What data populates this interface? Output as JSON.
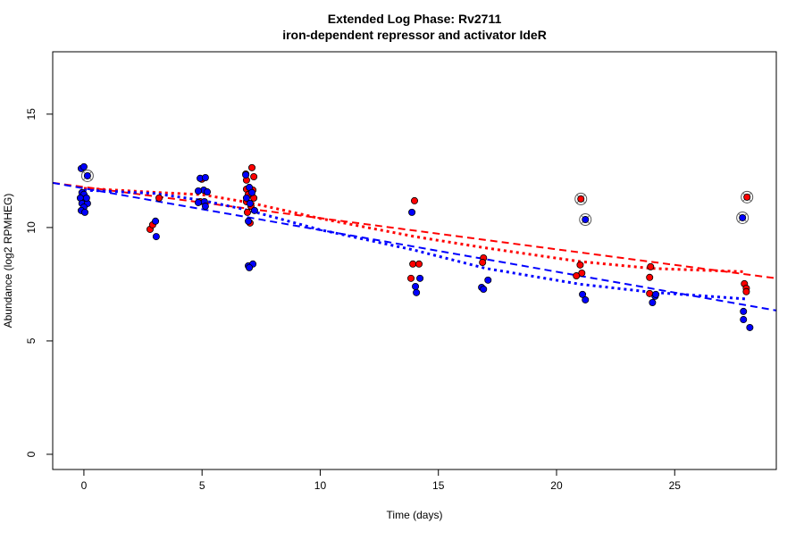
{
  "chart_data": {
    "type": "scatter",
    "title": "Extended Log Phase:      Rv2711",
    "subtitle": "iron-dependent repressor and activator IdeR",
    "xlabel": "Time  (days)",
    "ylabel": "Abundance  (log2 RPMHEG)",
    "xlim": [
      -1.32,
      29.3
    ],
    "ylim": [
      -0.67,
      17.75
    ],
    "xticks": [
      0,
      5,
      10,
      15,
      20,
      25
    ],
    "yticks": [
      0,
      5,
      10,
      15
    ],
    "grid": false,
    "colors": {
      "red": "#ff0000",
      "blue": "#0000ff"
    },
    "series": [
      {
        "color": "#ff0000",
        "points": [
          [
            2.8,
            9.92
          ],
          [
            2.91,
            10.12
          ],
          [
            3.18,
            11.3
          ],
          [
            4.99,
            12.13
          ],
          [
            4.92,
            11.14
          ],
          [
            6.85,
            12.36
          ],
          [
            7.11,
            12.64
          ],
          [
            6.88,
            12.09
          ],
          [
            7.19,
            12.24
          ],
          [
            6.88,
            11.69
          ],
          [
            7.15,
            11.65
          ],
          [
            6.96,
            11.46
          ],
          [
            7.19,
            11.3
          ],
          [
            6.88,
            11.14
          ],
          [
            7.07,
            10.94
          ],
          [
            6.92,
            10.67
          ],
          [
            7.03,
            10.2
          ],
          [
            13.99,
            11.18
          ],
          [
            13.92,
            8.39
          ],
          [
            14.18,
            8.39
          ],
          [
            13.84,
            7.76
          ],
          [
            16.91,
            8.66
          ],
          [
            16.87,
            8.46
          ],
          [
            21.0,
            8.35
          ],
          [
            21.07,
            7.99
          ],
          [
            20.84,
            7.87
          ],
          [
            23.98,
            8.27
          ],
          [
            23.94,
            7.8
          ],
          [
            23.94,
            7.09
          ],
          [
            27.95,
            7.52
          ],
          [
            28.03,
            7.32
          ],
          [
            28.03,
            7.17
          ]
        ],
        "outliers": [
          [
            21.03,
            11.26
          ],
          [
            28.06,
            11.34
          ]
        ]
      },
      {
        "color": "#0000ff",
        "points": [
          [
            -0.11,
            12.6
          ],
          [
            0,
            12.68
          ],
          [
            -0.08,
            11.54
          ],
          [
            0,
            11.46
          ],
          [
            -0.15,
            11.3
          ],
          [
            0.08,
            11.18
          ],
          [
            -0.08,
            11.06
          ],
          [
            0.15,
            11.06
          ],
          [
            0,
            10.9
          ],
          [
            -0.11,
            10.75
          ],
          [
            0.04,
            10.67
          ],
          [
            0.11,
            11.3
          ],
          [
            3.03,
            10.28
          ],
          [
            3.06,
            9.6
          ],
          [
            4.92,
            12.17
          ],
          [
            5.14,
            12.2
          ],
          [
            5.07,
            11.65
          ],
          [
            4.84,
            11.61
          ],
          [
            5.22,
            11.57
          ],
          [
            4.84,
            11.1
          ],
          [
            5.1,
            11.14
          ],
          [
            5.14,
            10.94
          ],
          [
            6.85,
            12.32
          ],
          [
            7.0,
            11.77
          ],
          [
            7.11,
            11.54
          ],
          [
            6.88,
            11.3
          ],
          [
            7.03,
            11.06
          ],
          [
            7.22,
            10.75
          ],
          [
            6.96,
            10.28
          ],
          [
            6.96,
            8.31
          ],
          [
            7.15,
            8.39
          ],
          [
            7.0,
            8.23
          ],
          [
            13.88,
            10.67
          ],
          [
            14.22,
            7.76
          ],
          [
            14.03,
            7.4
          ],
          [
            14.07,
            7.13
          ],
          [
            17.1,
            7.68
          ],
          [
            16.83,
            7.36
          ],
          [
            16.91,
            7.28
          ],
          [
            21.1,
            7.05
          ],
          [
            21.22,
            6.81
          ],
          [
            24.17,
            6.97
          ],
          [
            24.2,
            7.05
          ],
          [
            24.06,
            6.69
          ],
          [
            27.91,
            6.3
          ],
          [
            27.91,
            5.94
          ],
          [
            28.18,
            5.59
          ]
        ],
        "outliers": [
          [
            0.15,
            12.28
          ],
          [
            21.22,
            10.35
          ],
          [
            27.87,
            10.43
          ]
        ]
      }
    ],
    "fit_lines": [
      {
        "color": "#ff0000",
        "style": "dashed",
        "x": [
          -1.32,
          29.3
        ],
        "y": [
          11.97,
          7.76
        ]
      },
      {
        "color": "#0000ff",
        "style": "dashed",
        "x": [
          -1.32,
          29.3
        ],
        "y": [
          11.97,
          6.34
        ]
      },
      {
        "color": "#ff0000",
        "style": "dotted",
        "x": [
          0,
          3,
          5,
          7,
          10,
          14,
          17,
          21,
          24,
          28
        ],
        "y": [
          11.73,
          11.55,
          11.45,
          11.1,
          10.4,
          9.6,
          9.1,
          8.5,
          8.2,
          8.05
        ]
      },
      {
        "color": "#0000ff",
        "style": "dotted",
        "x": [
          0,
          3,
          5,
          7,
          10,
          14,
          17,
          21,
          24,
          28
        ],
        "y": [
          11.65,
          11.5,
          11.2,
          10.75,
          9.9,
          9.0,
          8.2,
          7.5,
          7.15,
          6.85
        ]
      }
    ]
  }
}
